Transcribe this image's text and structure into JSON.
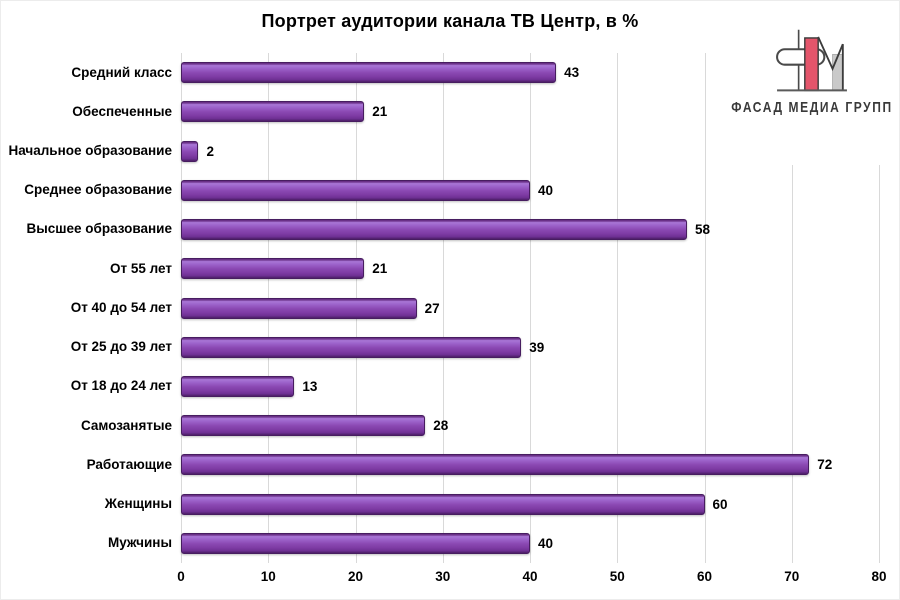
{
  "logo": {
    "text": "ФАСАД МЕДИА ГРУПП",
    "accent_color": "#e4556b",
    "outline_color": "#4a4a4a",
    "gray_color": "#c9c9c9"
  },
  "chart_data": {
    "type": "bar",
    "orientation": "horizontal",
    "title": "Портрет аудитории канала ТВ Центр, в %",
    "categories": [
      "Средний класс",
      "Обеспеченные",
      "Начальное образование",
      "Среднее образование",
      "Высшее образование",
      "От 55 лет",
      "От 40 до 54 лет",
      "От 25 до 39 лет",
      "От 18 до 24 лет",
      "Самозанятые",
      "Работающие",
      "Женщины",
      "Мужчины"
    ],
    "values": [
      43,
      21,
      2,
      40,
      58,
      21,
      27,
      39,
      13,
      28,
      72,
      60,
      40
    ],
    "xlim": [
      0,
      80
    ],
    "xticks": [
      0,
      10,
      20,
      30,
      40,
      50,
      60,
      70,
      80
    ],
    "grid": true,
    "value_labels": true,
    "bar_color": "#8746af",
    "gridline_color": "#d9d9d9",
    "legend": "none"
  }
}
